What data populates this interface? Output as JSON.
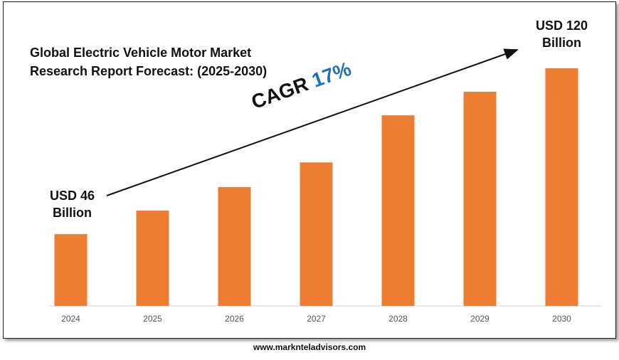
{
  "chart_data": {
    "type": "bar",
    "title": "Global Electric Vehicle Motor Market Research Report Forecast: (2025-2030)",
    "categories": [
      "2024",
      "2025",
      "2026",
      "2027",
      "2028",
      "2029",
      "2030"
    ],
    "values": [
      46,
      56.5,
      67,
      78,
      99,
      109.5,
      120
    ],
    "value_labels": [
      "USD 46 Billion",
      null,
      null,
      null,
      null,
      null,
      "USD 120 Billion"
    ],
    "color": "#ed7d31",
    "ylim": [
      14,
      126
    ],
    "annotation": {
      "text": "CAGR",
      "value": "17%",
      "value_color": "#1f6fbf"
    },
    "footer": "www.marknteladvisors.com"
  }
}
